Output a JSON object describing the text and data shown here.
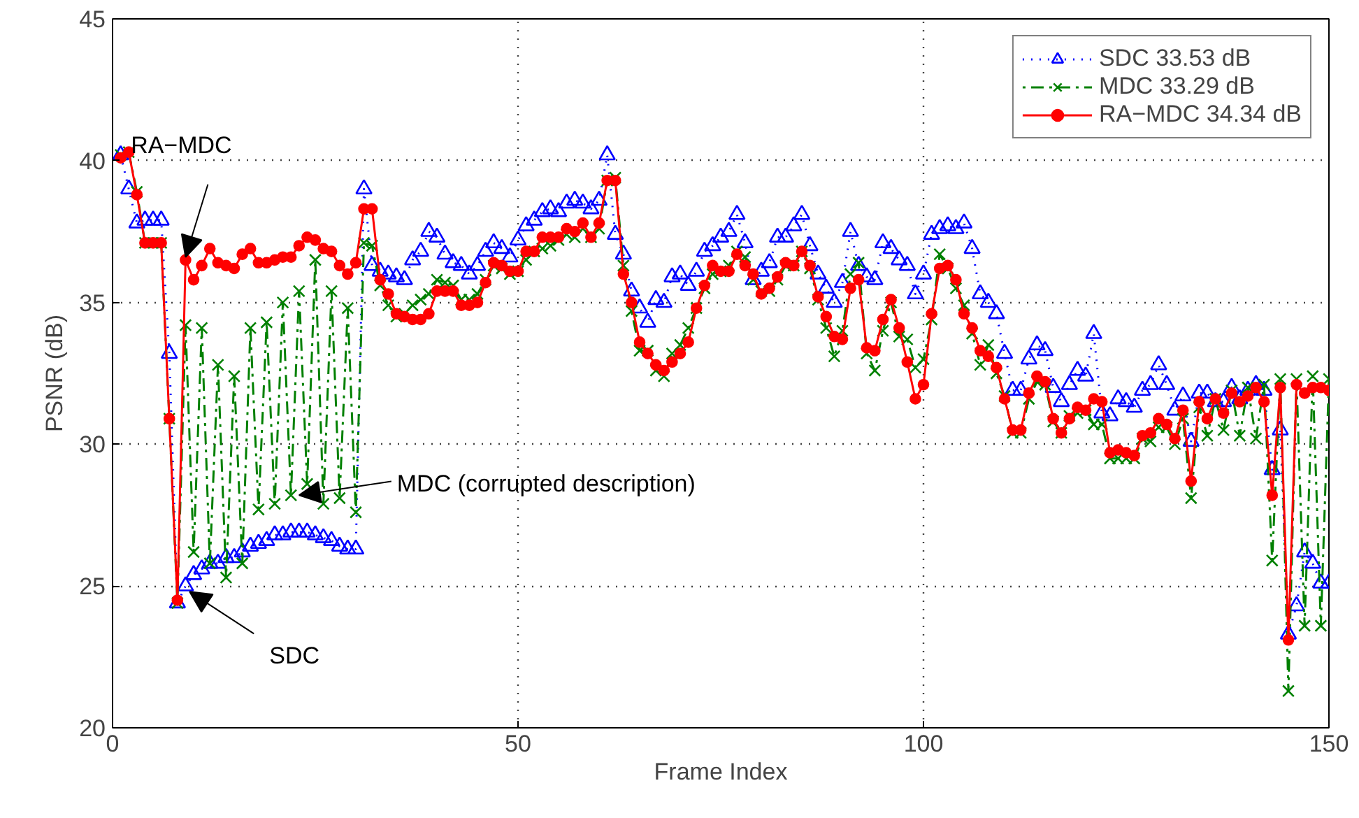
{
  "chart_data": {
    "type": "line",
    "xlabel": "Frame Index",
    "ylabel": "PSNR (dB)",
    "x": [
      1,
      2,
      3,
      4,
      5,
      6,
      7,
      8,
      9,
      10,
      11,
      12,
      13,
      14,
      15,
      16,
      17,
      18,
      19,
      20,
      21,
      22,
      23,
      24,
      25,
      26,
      27,
      28,
      29,
      30,
      31,
      32,
      33,
      34,
      35,
      36,
      37,
      38,
      39,
      40,
      41,
      42,
      43,
      44,
      45,
      46,
      47,
      48,
      49,
      50,
      51,
      52,
      53,
      54,
      55,
      56,
      57,
      58,
      59,
      60,
      61,
      62,
      63,
      64,
      65,
      66,
      67,
      68,
      69,
      70,
      71,
      72,
      73,
      74,
      75,
      76,
      77,
      78,
      79,
      80,
      81,
      82,
      83,
      84,
      85,
      86,
      87,
      88,
      89,
      90,
      91,
      92,
      93,
      94,
      95,
      96,
      97,
      98,
      99,
      100,
      101,
      102,
      103,
      104,
      105,
      106,
      107,
      108,
      109,
      110,
      111,
      112,
      113,
      114,
      115,
      116,
      117,
      118,
      119,
      120,
      121,
      122,
      123,
      124,
      125,
      126,
      127,
      128,
      129,
      130,
      131,
      132,
      133,
      134,
      135,
      136,
      137,
      138,
      139,
      140,
      141,
      142,
      143,
      144,
      145,
      146,
      147,
      148,
      149,
      150
    ],
    "series": [
      {
        "name": "SDC 33.53 dB",
        "color": "#0000ff",
        "marker": "triangle",
        "line_style": "dotted",
        "values": [
          40.2,
          39.0,
          37.8,
          37.9,
          37.9,
          37.9,
          33.2,
          24.4,
          25.0,
          25.4,
          25.6,
          25.8,
          25.8,
          26.0,
          26.0,
          26.2,
          26.4,
          26.5,
          26.6,
          26.8,
          26.8,
          26.9,
          26.9,
          26.9,
          26.8,
          26.7,
          26.6,
          26.4,
          26.3,
          26.3,
          39.0,
          36.3,
          36.1,
          36.0,
          35.9,
          35.8,
          36.5,
          36.8,
          37.5,
          37.3,
          36.7,
          36.4,
          36.3,
          36.0,
          36.3,
          36.8,
          37.1,
          36.9,
          36.6,
          37.2,
          37.7,
          37.9,
          38.2,
          38.3,
          38.2,
          38.5,
          38.6,
          38.5,
          38.3,
          38.6,
          40.2,
          37.4,
          36.7,
          35.4,
          34.8,
          34.3,
          35.1,
          35.0,
          35.9,
          36.0,
          35.6,
          36.1,
          36.8,
          37.0,
          37.3,
          37.5,
          38.1,
          37.1,
          35.8,
          36.1,
          36.4,
          37.3,
          37.3,
          37.7,
          38.1,
          37.0,
          36.0,
          35.5,
          35.0,
          35.7,
          37.5,
          36.3,
          35.9,
          35.8,
          37.1,
          36.9,
          36.5,
          36.3,
          35.3,
          36.0,
          37.4,
          37.6,
          37.7,
          37.6,
          37.8,
          36.9,
          35.3,
          35.0,
          34.6,
          33.2,
          31.9,
          31.9,
          33.0,
          33.5,
          33.3,
          32.0,
          31.5,
          32.1,
          32.6,
          32.4,
          33.9,
          31.1,
          31.0,
          31.6,
          31.5,
          31.3,
          31.9,
          32.1,
          32.8,
          32.1,
          31.2,
          31.7,
          30.1,
          31.8,
          31.8,
          31.5,
          31.5,
          32.0,
          31.6,
          31.9,
          32.1,
          31.9,
          29.1,
          30.5,
          23.3,
          24.3,
          26.2,
          25.8,
          25.1,
          25.1
        ]
      },
      {
        "name": "MDC 33.29 dB",
        "color": "#008000",
        "marker": "cross",
        "line_style": "dashdot",
        "values": [
          40.2,
          40.3,
          38.9,
          37.1,
          37.1,
          37.1,
          30.9,
          24.4,
          34.2,
          26.2,
          34.1,
          25.8,
          32.8,
          25.3,
          32.4,
          25.8,
          34.1,
          27.7,
          34.3,
          27.9,
          35.0,
          28.2,
          35.4,
          28.6,
          36.5,
          27.9,
          35.4,
          28.1,
          34.8,
          27.6,
          37.1,
          37.0,
          35.6,
          34.9,
          34.5,
          34.6,
          34.9,
          35.1,
          35.3,
          35.8,
          35.7,
          35.6,
          35.1,
          35.1,
          35.3,
          35.8,
          36.3,
          36.2,
          36.0,
          36.1,
          36.5,
          36.8,
          36.9,
          37.0,
          37.2,
          37.4,
          37.3,
          37.6,
          37.3,
          37.6,
          39.3,
          39.4,
          36.3,
          34.7,
          33.3,
          33.3,
          32.6,
          32.4,
          33.2,
          33.5,
          34.1,
          34.8,
          35.5,
          36.0,
          36.1,
          36.3,
          36.8,
          36.6,
          35.8,
          35.4,
          35.4,
          35.8,
          36.3,
          36.3,
          36.8,
          36.2,
          35.1,
          34.1,
          33.1,
          34.0,
          36.0,
          36.4,
          33.2,
          32.6,
          34.0,
          35.0,
          33.8,
          33.7,
          32.7,
          33.0,
          34.4,
          36.7,
          36.2,
          35.5,
          34.9,
          33.9,
          32.8,
          33.5,
          32.5,
          31.7,
          30.4,
          30.4,
          31.6,
          32.2,
          32.1,
          30.8,
          30.4,
          31.0,
          31.1,
          31.2,
          30.7,
          30.7,
          29.5,
          29.5,
          29.5,
          29.5,
          30.2,
          30.1,
          30.6,
          30.6,
          30.0,
          30.9,
          28.1,
          31.3,
          30.3,
          31.6,
          30.5,
          31.9,
          30.3,
          32.0,
          30.2,
          32.1,
          25.9,
          32.3,
          21.3,
          32.3,
          23.6,
          32.4,
          23.6,
          32.3
        ]
      },
      {
        "name": "RA−MDC 34.34 dB",
        "color": "#ff0000",
        "marker": "circle",
        "line_style": "solid",
        "values": [
          40.1,
          40.3,
          38.8,
          37.1,
          37.1,
          37.1,
          30.9,
          24.5,
          36.5,
          35.8,
          36.3,
          36.9,
          36.4,
          36.3,
          36.2,
          36.7,
          36.9,
          36.4,
          36.4,
          36.5,
          36.6,
          36.6,
          37.0,
          37.3,
          37.2,
          36.9,
          36.8,
          36.3,
          36.0,
          36.4,
          38.3,
          38.3,
          35.8,
          35.3,
          34.6,
          34.5,
          34.4,
          34.4,
          34.6,
          35.4,
          35.4,
          35.4,
          34.9,
          34.9,
          35.0,
          35.7,
          36.4,
          36.3,
          36.1,
          36.1,
          36.8,
          36.8,
          37.3,
          37.3,
          37.3,
          37.6,
          37.5,
          37.8,
          37.3,
          37.8,
          39.3,
          39.3,
          36.0,
          35.0,
          33.6,
          33.2,
          32.8,
          32.6,
          32.9,
          33.2,
          33.6,
          34.8,
          35.6,
          36.3,
          36.1,
          36.1,
          36.7,
          36.3,
          36.0,
          35.3,
          35.5,
          35.9,
          36.4,
          36.3,
          36.8,
          36.3,
          35.2,
          34.5,
          33.8,
          33.7,
          35.5,
          35.8,
          33.4,
          33.3,
          34.4,
          35.1,
          34.1,
          32.9,
          31.6,
          32.1,
          34.6,
          36.2,
          36.3,
          35.8,
          34.6,
          34.1,
          33.3,
          33.1,
          32.7,
          31.6,
          30.5,
          30.5,
          31.8,
          32.4,
          32.2,
          30.9,
          30.4,
          30.9,
          31.3,
          31.2,
          31.6,
          31.5,
          29.7,
          29.8,
          29.7,
          29.6,
          30.3,
          30.4,
          30.9,
          30.7,
          30.2,
          31.2,
          28.7,
          31.5,
          30.9,
          31.6,
          31.1,
          31.8,
          31.5,
          31.7,
          32.0,
          31.5,
          28.2,
          32.0,
          23.1,
          32.1,
          31.8,
          32.0,
          32.0,
          31.9
        ]
      }
    ],
    "xlim": [
      0,
      150
    ],
    "xticks": [
      0,
      50,
      100,
      150
    ],
    "ylim": [
      20,
      45
    ],
    "yticks": [
      20,
      25,
      30,
      35,
      40,
      45
    ],
    "grid": true,
    "legend": "top right",
    "annotations": [
      {
        "text": "RA−MDC",
        "x": 9,
        "y": 36.6
      },
      {
        "text": "MDC (corrupted description)",
        "x": 23,
        "y": 28.2
      },
      {
        "text": "SDC",
        "x": 9.5,
        "y": 24.8
      }
    ]
  }
}
